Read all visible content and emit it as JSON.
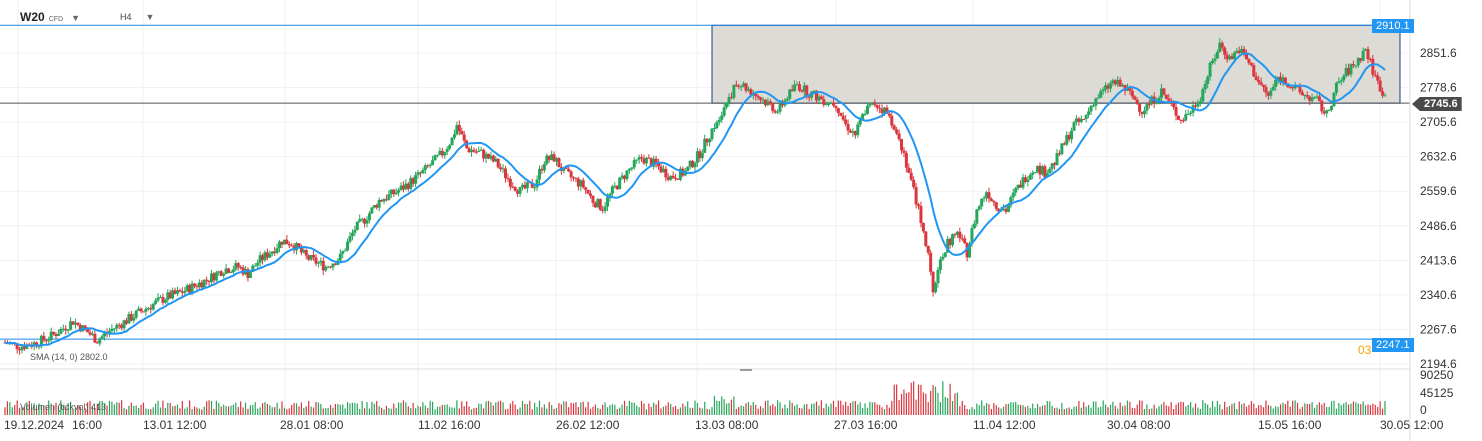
{
  "header": {
    "symbol": "W20",
    "symbol_tag": "CFD",
    "timeframe": "H4"
  },
  "price_axis": {
    "labels": [
      "2851.6",
      "2778.6",
      "2705.6",
      "2632.6",
      "2559.6",
      "2486.6",
      "2413.6",
      "2340.6",
      "2267.6",
      "2194.6"
    ]
  },
  "volume_axis": {
    "labels": [
      "90250",
      "45125",
      "0"
    ]
  },
  "time_axis": {
    "labels": [
      "19.12.2024",
      "16:00",
      "13.01 12:00",
      "28.01 08:00",
      "11.02 16:00",
      "26.02 12:00",
      "13.03 08:00",
      "27.03 16:00",
      "11.04 12:00",
      "30.04 08:00",
      "15.05 16:00",
      "30.05 12:00"
    ]
  },
  "tags": {
    "upper_level": "2910.1",
    "current_price": "2745.6",
    "lower_level": "2247.1",
    "lower_level_side": "03"
  },
  "indicators": {
    "sma_label": "SMA (14, 0) 2802.0",
    "volume_label": "Volumen (tickvol) 413"
  },
  "colors": {
    "up": "#26a65b",
    "down": "#d9363e",
    "sma": "#2196f3",
    "zone_fill": "#dcdbd6",
    "zone_border": "#1b3a8a",
    "blue_line": "#1e88e5",
    "price_line": "#555555"
  },
  "chart_data": {
    "type": "candlestick",
    "ylim": [
      2180,
      2930
    ],
    "levels": {
      "zone_top": 2910.1,
      "zone_bottom": 2745.6,
      "support": 2247.1,
      "current": 2745.6
    },
    "close_path": [
      [
        0,
        2240
      ],
      [
        6,
        2232
      ],
      [
        12,
        2238
      ],
      [
        18,
        2250
      ],
      [
        24,
        2270
      ],
      [
        28,
        2285
      ],
      [
        34,
        2262
      ],
      [
        38,
        2245
      ],
      [
        44,
        2268
      ],
      [
        48,
        2280
      ],
      [
        54,
        2300
      ],
      [
        60,
        2318
      ],
      [
        66,
        2335
      ],
      [
        72,
        2345
      ],
      [
        78,
        2360
      ],
      [
        84,
        2375
      ],
      [
        90,
        2395
      ],
      [
        96,
        2400
      ],
      [
        100,
        2385
      ],
      [
        104,
        2410
      ],
      [
        110,
        2435
      ],
      [
        114,
        2455
      ],
      [
        118,
        2450
      ],
      [
        124,
        2420
      ],
      [
        128,
        2410
      ],
      [
        132,
        2400
      ],
      [
        138,
        2420
      ],
      [
        144,
        2480
      ],
      [
        148,
        2500
      ],
      [
        154,
        2540
      ],
      [
        160,
        2555
      ],
      [
        166,
        2575
      ],
      [
        172,
        2600
      ],
      [
        176,
        2620
      ],
      [
        180,
        2640
      ],
      [
        184,
        2670
      ],
      [
        186,
        2700
      ],
      [
        190,
        2650
      ],
      [
        196,
        2640
      ],
      [
        202,
        2620
      ],
      [
        208,
        2580
      ],
      [
        212,
        2560
      ],
      [
        218,
        2575
      ],
      [
        222,
        2625
      ],
      [
        226,
        2630
      ],
      [
        230,
        2600
      ],
      [
        234,
        2585
      ],
      [
        238,
        2570
      ],
      [
        242,
        2540
      ],
      [
        246,
        2525
      ],
      [
        250,
        2560
      ],
      [
        256,
        2600
      ],
      [
        262,
        2630
      ],
      [
        268,
        2615
      ],
      [
        274,
        2590
      ],
      [
        280,
        2600
      ],
      [
        286,
        2640
      ],
      [
        290,
        2680
      ],
      [
        294,
        2720
      ],
      [
        298,
        2760
      ],
      [
        302,
        2790
      ],
      [
        306,
        2775
      ],
      [
        310,
        2760
      ],
      [
        314,
        2745
      ],
      [
        318,
        2730
      ],
      [
        322,
        2760
      ],
      [
        326,
        2785
      ],
      [
        330,
        2770
      ],
      [
        334,
        2760
      ],
      [
        338,
        2750
      ],
      [
        342,
        2745
      ],
      [
        346,
        2700
      ],
      [
        350,
        2680
      ],
      [
        354,
        2730
      ],
      [
        358,
        2745
      ],
      [
        362,
        2730
      ],
      [
        366,
        2700
      ],
      [
        370,
        2640
      ],
      [
        374,
        2560
      ],
      [
        378,
        2480
      ],
      [
        380,
        2420
      ],
      [
        382,
        2340
      ],
      [
        384,
        2400
      ],
      [
        388,
        2450
      ],
      [
        392,
        2470
      ],
      [
        396,
        2430
      ],
      [
        400,
        2520
      ],
      [
        404,
        2560
      ],
      [
        408,
        2530
      ],
      [
        412,
        2520
      ],
      [
        416,
        2560
      ],
      [
        420,
        2590
      ],
      [
        424,
        2610
      ],
      [
        428,
        2600
      ],
      [
        432,
        2620
      ],
      [
        436,
        2660
      ],
      [
        440,
        2700
      ],
      [
        444,
        2710
      ],
      [
        448,
        2750
      ],
      [
        452,
        2770
      ],
      [
        456,
        2790
      ],
      [
        460,
        2780
      ],
      [
        464,
        2760
      ],
      [
        468,
        2730
      ],
      [
        472,
        2750
      ],
      [
        476,
        2770
      ],
      [
        480,
        2740
      ],
      [
        484,
        2710
      ],
      [
        488,
        2730
      ],
      [
        492,
        2760
      ],
      [
        496,
        2820
      ],
      [
        500,
        2870
      ],
      [
        504,
        2840
      ],
      [
        508,
        2860
      ],
      [
        512,
        2830
      ],
      [
        516,
        2790
      ],
      [
        520,
        2760
      ],
      [
        524,
        2800
      ],
      [
        528,
        2790
      ],
      [
        532,
        2770
      ],
      [
        536,
        2760
      ],
      [
        540,
        2750
      ],
      [
        544,
        2720
      ],
      [
        548,
        2780
      ],
      [
        552,
        2810
      ],
      [
        556,
        2830
      ],
      [
        560,
        2860
      ],
      [
        564,
        2800
      ],
      [
        568,
        2760
      ]
    ],
    "sma": {
      "name": "SMA (14, 0)",
      "last": 2802.0
    },
    "volume": {
      "name": "Volumen (tickvol)",
      "last": 413,
      "ylim": [
        0,
        90250
      ]
    }
  }
}
